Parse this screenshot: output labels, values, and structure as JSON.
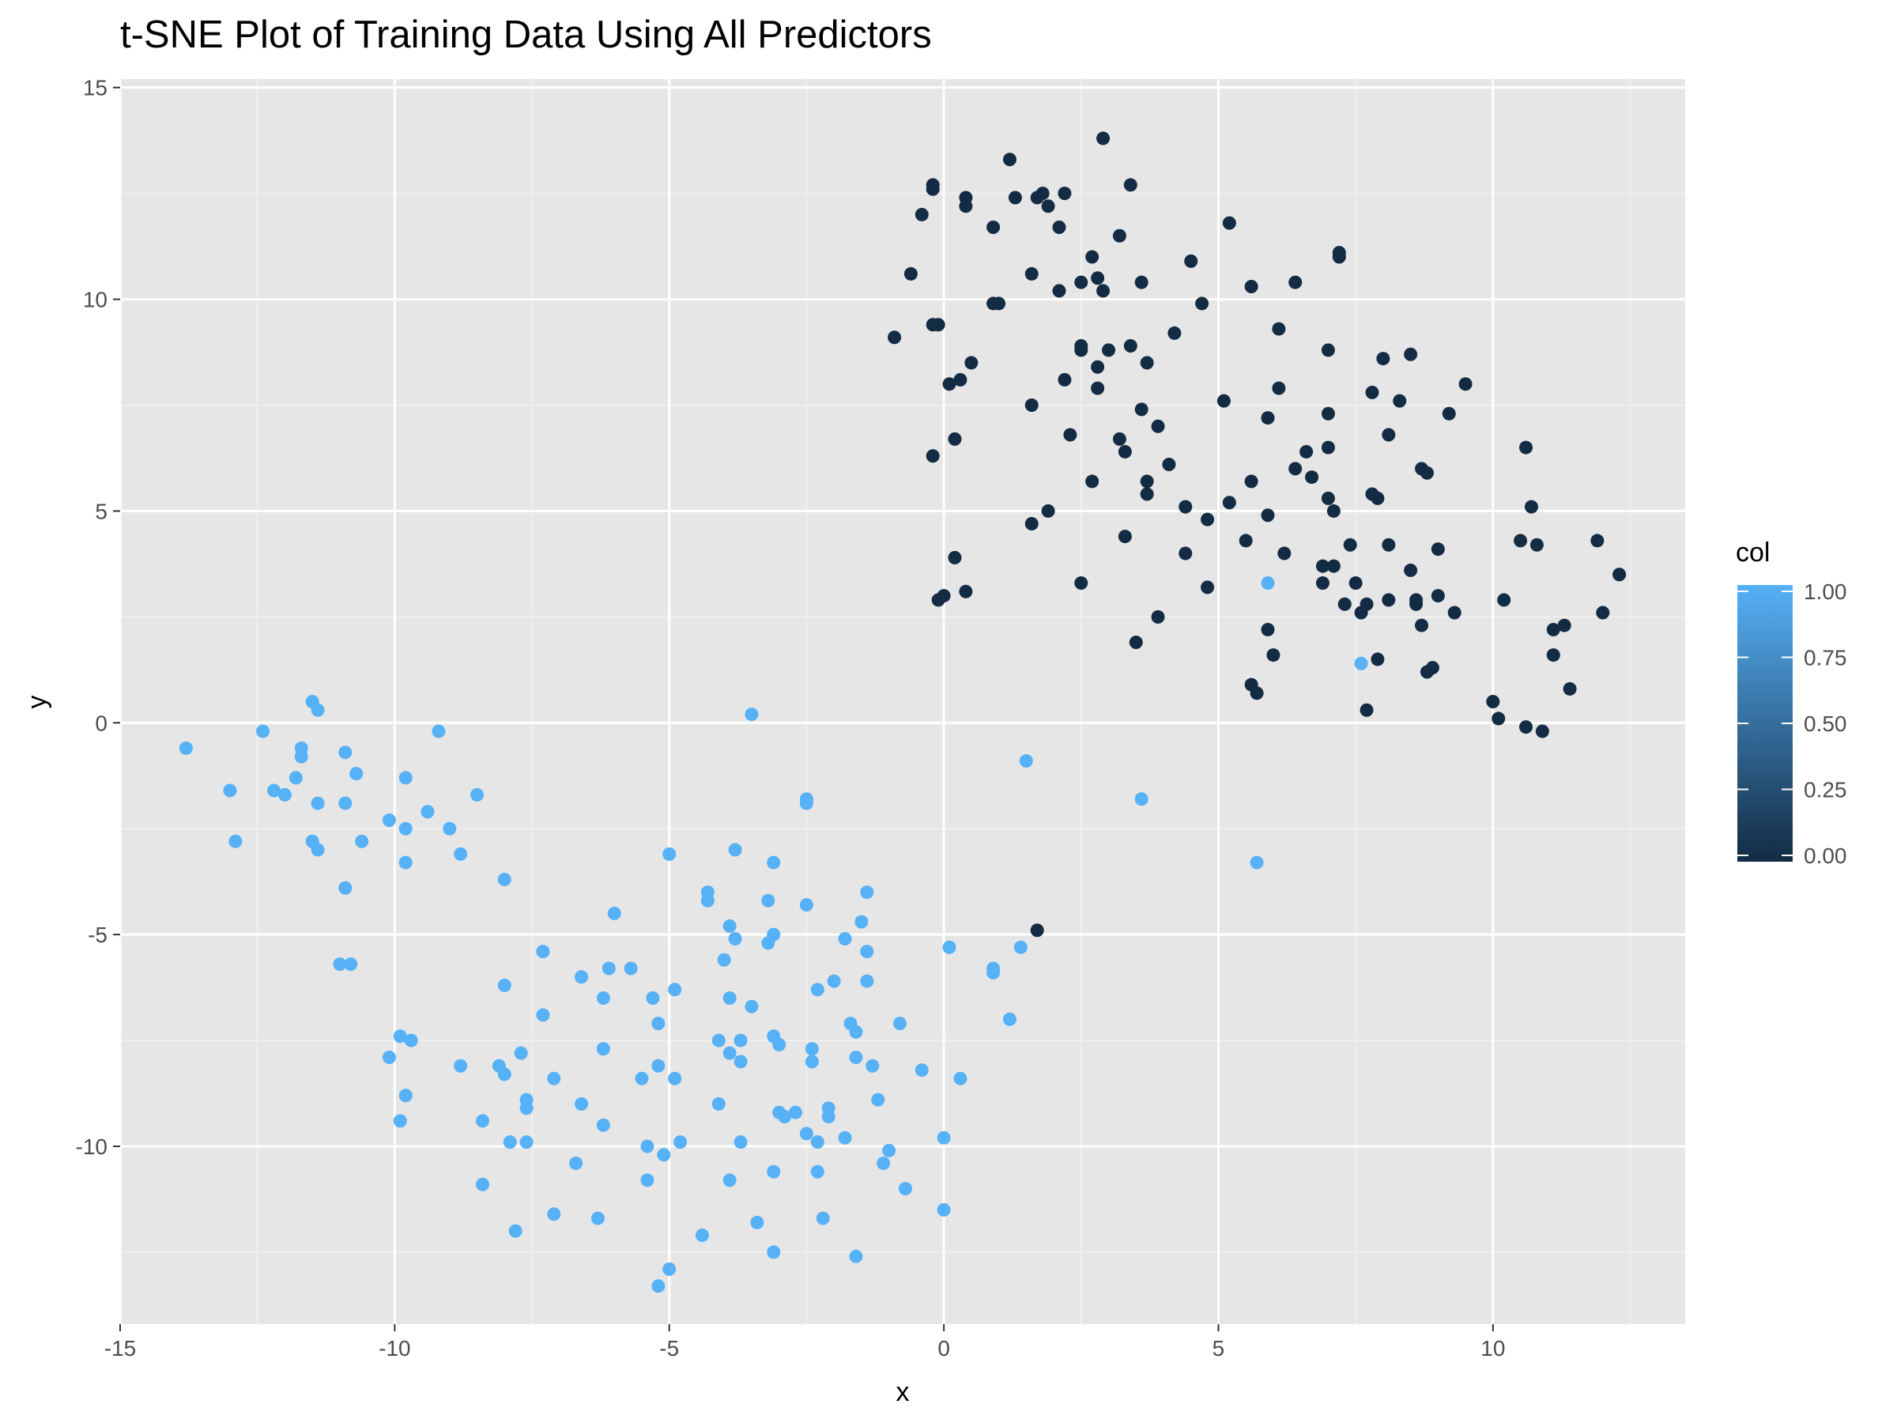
{
  "chart_data": {
    "type": "scatter",
    "title": "t-SNE Plot of Training Data Using All Predictors",
    "xlabel": "x",
    "ylabel": "y",
    "xlim": [
      -15,
      13.5
    ],
    "ylim": [
      -14.2,
      15.2
    ],
    "x_ticks": [
      -15,
      -10,
      -5,
      0,
      5,
      10
    ],
    "x_tick_labels": [
      "-15",
      "-10",
      "-5",
      "0",
      "5",
      "10"
    ],
    "y_ticks": [
      -10,
      -5,
      0,
      5,
      10,
      15
    ],
    "y_tick_labels": [
      "-10",
      "-5",
      "0",
      "5",
      "10",
      "15"
    ],
    "grid": true,
    "panel_background": "#e6e6e6",
    "grid_color": "#ffffff",
    "color_scale": {
      "low": "#132b43",
      "high": "#56b1f7",
      "min": 0,
      "max": 1
    },
    "legend": {
      "title": "col",
      "placement": "right",
      "ticks": [
        1.0,
        0.75,
        0.5,
        0.25,
        0.0
      ],
      "tick_labels": [
        "1.00",
        "0.75",
        "0.50",
        "0.25",
        "0.00"
      ]
    },
    "series": [
      {
        "col": 0,
        "points": [
          [
            2.9,
            13.8
          ],
          [
            1.2,
            13.3
          ],
          [
            3.4,
            12.7
          ],
          [
            -0.2,
            12.7
          ],
          [
            -0.2,
            12.6
          ],
          [
            0.4,
            12.4
          ],
          [
            1.3,
            12.4
          ],
          [
            1.8,
            12.5
          ],
          [
            1.7,
            12.4
          ],
          [
            2.2,
            12.5
          ],
          [
            0.4,
            12.2
          ],
          [
            1.9,
            12.2
          ],
          [
            -0.4,
            12.0
          ],
          [
            5.2,
            11.8
          ],
          [
            0.9,
            11.7
          ],
          [
            2.1,
            11.7
          ],
          [
            3.2,
            11.5
          ],
          [
            7.2,
            11.1
          ],
          [
            7.2,
            11.0
          ],
          [
            2.7,
            11.0
          ],
          [
            4.5,
            10.9
          ],
          [
            1.6,
            10.6
          ],
          [
            -0.6,
            10.6
          ],
          [
            2.8,
            10.5
          ],
          [
            2.5,
            10.4
          ],
          [
            3.6,
            10.4
          ],
          [
            6.4,
            10.4
          ],
          [
            5.6,
            10.3
          ],
          [
            2.1,
            10.2
          ],
          [
            2.9,
            10.2
          ],
          [
            1.0,
            9.9
          ],
          [
            0.9,
            9.9
          ],
          [
            4.7,
            9.9
          ],
          [
            -0.2,
            9.4
          ],
          [
            -0.1,
            9.4
          ],
          [
            6.1,
            9.3
          ],
          [
            4.2,
            9.2
          ],
          [
            -0.9,
            9.1
          ],
          [
            2.5,
            8.9
          ],
          [
            3.4,
            8.9
          ],
          [
            2.5,
            8.8
          ],
          [
            3.0,
            8.8
          ],
          [
            7.0,
            8.8
          ],
          [
            8.5,
            8.7
          ],
          [
            8.0,
            8.6
          ],
          [
            3.7,
            8.5
          ],
          [
            0.5,
            8.5
          ],
          [
            2.8,
            8.4
          ],
          [
            2.2,
            8.1
          ],
          [
            0.3,
            8.1
          ],
          [
            9.5,
            8.0
          ],
          [
            0.1,
            8.0
          ],
          [
            2.8,
            7.9
          ],
          [
            6.1,
            7.9
          ],
          [
            7.8,
            7.8
          ],
          [
            5.1,
            7.6
          ],
          [
            8.3,
            7.6
          ],
          [
            1.6,
            7.5
          ],
          [
            3.6,
            7.4
          ],
          [
            7.0,
            7.3
          ],
          [
            9.2,
            7.3
          ],
          [
            5.9,
            7.2
          ],
          [
            3.9,
            7.0
          ],
          [
            8.1,
            6.8
          ],
          [
            2.3,
            6.8
          ],
          [
            0.2,
            6.7
          ],
          [
            3.2,
            6.7
          ],
          [
            10.6,
            6.5
          ],
          [
            7.0,
            6.5
          ],
          [
            3.3,
            6.4
          ],
          [
            6.6,
            6.4
          ],
          [
            -0.2,
            6.3
          ],
          [
            4.1,
            6.1
          ],
          [
            6.4,
            6.0
          ],
          [
            8.7,
            6.0
          ],
          [
            8.8,
            5.9
          ],
          [
            6.7,
            5.8
          ],
          [
            5.6,
            5.7
          ],
          [
            3.7,
            5.7
          ],
          [
            2.7,
            5.7
          ],
          [
            3.7,
            5.4
          ],
          [
            7.8,
            5.4
          ],
          [
            7.9,
            5.3
          ],
          [
            7.0,
            5.3
          ],
          [
            5.2,
            5.2
          ],
          [
            10.7,
            5.1
          ],
          [
            4.4,
            5.1
          ],
          [
            7.1,
            5.0
          ],
          [
            1.9,
            5.0
          ],
          [
            5.9,
            4.9
          ],
          [
            4.8,
            4.8
          ],
          [
            1.6,
            4.7
          ],
          [
            3.3,
            4.4
          ],
          [
            5.5,
            4.3
          ],
          [
            10.5,
            4.3
          ],
          [
            11.9,
            4.3
          ],
          [
            8.1,
            4.2
          ],
          [
            10.8,
            4.2
          ],
          [
            7.4,
            4.2
          ],
          [
            9.0,
            4.1
          ],
          [
            4.4,
            4.0
          ],
          [
            6.2,
            4.0
          ],
          [
            0.2,
            3.9
          ],
          [
            6.9,
            3.7
          ],
          [
            7.1,
            3.7
          ],
          [
            8.5,
            3.6
          ],
          [
            12.3,
            3.5
          ],
          [
            12.3,
            3.5
          ],
          [
            7.5,
            3.3
          ],
          [
            6.9,
            3.3
          ],
          [
            2.5,
            3.3
          ],
          [
            4.8,
            3.2
          ],
          [
            0.4,
            3.1
          ],
          [
            0.0,
            3.0
          ],
          [
            9.0,
            3.0
          ],
          [
            -0.1,
            2.9
          ],
          [
            10.2,
            2.9
          ],
          [
            8.1,
            2.9
          ],
          [
            8.6,
            2.9
          ],
          [
            8.6,
            2.8
          ],
          [
            7.3,
            2.8
          ],
          [
            7.7,
            2.8
          ],
          [
            7.6,
            2.6
          ],
          [
            9.3,
            2.6
          ],
          [
            12.0,
            2.6
          ],
          [
            3.9,
            2.5
          ],
          [
            11.3,
            2.3
          ],
          [
            11.1,
            2.2
          ],
          [
            8.7,
            2.3
          ],
          [
            5.9,
            2.2
          ],
          [
            3.5,
            1.9
          ],
          [
            11.1,
            1.6
          ],
          [
            6.0,
            1.6
          ],
          [
            7.9,
            1.5
          ],
          [
            8.9,
            1.3
          ],
          [
            8.8,
            1.2
          ],
          [
            5.6,
            0.9
          ],
          [
            11.4,
            0.8
          ],
          [
            5.7,
            0.7
          ],
          [
            10.0,
            0.5
          ],
          [
            7.7,
            0.3
          ],
          [
            10.1,
            0.1
          ],
          [
            10.6,
            -0.1
          ],
          [
            10.9,
            -0.2
          ],
          [
            1.7,
            -4.9
          ]
        ]
      },
      {
        "col": 1,
        "points": [
          [
            5.9,
            3.3
          ],
          [
            7.6,
            1.4
          ],
          [
            -3.5,
            0.2
          ],
          [
            -11.5,
            0.5
          ],
          [
            -11.4,
            0.3
          ],
          [
            -12.4,
            -0.2
          ],
          [
            -9.2,
            -0.2
          ],
          [
            -13.8,
            -0.6
          ],
          [
            -11.7,
            -0.6
          ],
          [
            -10.9,
            -0.7
          ],
          [
            -11.7,
            -0.8
          ],
          [
            1.5,
            -0.9
          ],
          [
            -10.7,
            -1.2
          ],
          [
            -11.8,
            -1.3
          ],
          [
            -9.8,
            -1.3
          ],
          [
            -12.2,
            -1.6
          ],
          [
            -13.0,
            -1.6
          ],
          [
            -12.0,
            -1.7
          ],
          [
            -8.5,
            -1.7
          ],
          [
            -2.5,
            -1.8
          ],
          [
            3.6,
            -1.8
          ],
          [
            -10.9,
            -1.9
          ],
          [
            -11.4,
            -1.9
          ],
          [
            -2.5,
            -1.9
          ],
          [
            -9.4,
            -2.1
          ],
          [
            -10.1,
            -2.3
          ],
          [
            -9.8,
            -2.5
          ],
          [
            -9.0,
            -2.5
          ],
          [
            -12.9,
            -2.8
          ],
          [
            -11.5,
            -2.8
          ],
          [
            -10.6,
            -2.8
          ],
          [
            -11.4,
            -3.0
          ],
          [
            -3.8,
            -3.0
          ],
          [
            -5.0,
            -3.1
          ],
          [
            -8.8,
            -3.1
          ],
          [
            -3.1,
            -3.3
          ],
          [
            -9.8,
            -3.3
          ],
          [
            5.7,
            -3.3
          ],
          [
            -8.0,
            -3.7
          ],
          [
            -10.9,
            -3.9
          ],
          [
            -1.4,
            -4.0
          ],
          [
            -4.3,
            -4.0
          ],
          [
            -4.3,
            -4.2
          ],
          [
            -3.2,
            -4.2
          ],
          [
            -2.5,
            -4.3
          ],
          [
            -6.0,
            -4.5
          ],
          [
            -1.5,
            -4.7
          ],
          [
            -3.9,
            -4.8
          ],
          [
            -3.1,
            -5.0
          ],
          [
            -3.8,
            -5.1
          ],
          [
            -1.8,
            -5.1
          ],
          [
            -3.2,
            -5.2
          ],
          [
            0.1,
            -5.3
          ],
          [
            1.4,
            -5.3
          ],
          [
            -1.4,
            -5.4
          ],
          [
            -7.3,
            -5.4
          ],
          [
            -4.0,
            -5.6
          ],
          [
            -11.0,
            -5.7
          ],
          [
            -10.8,
            -5.7
          ],
          [
            -5.7,
            -5.8
          ],
          [
            -6.1,
            -5.8
          ],
          [
            0.9,
            -5.8
          ],
          [
            0.9,
            -5.9
          ],
          [
            -6.6,
            -6.0
          ],
          [
            -2.0,
            -6.1
          ],
          [
            -1.4,
            -6.1
          ],
          [
            -8.0,
            -6.2
          ],
          [
            -4.9,
            -6.3
          ],
          [
            -2.3,
            -6.3
          ],
          [
            -3.9,
            -6.5
          ],
          [
            -5.3,
            -6.5
          ],
          [
            -6.2,
            -6.5
          ],
          [
            -3.5,
            -6.7
          ],
          [
            1.2,
            -7.0
          ],
          [
            -7.3,
            -6.9
          ],
          [
            -1.7,
            -7.1
          ],
          [
            -0.8,
            -7.1
          ],
          [
            -5.2,
            -7.1
          ],
          [
            -1.6,
            -7.3
          ],
          [
            -9.9,
            -7.4
          ],
          [
            -3.1,
            -7.4
          ],
          [
            -9.7,
            -7.5
          ],
          [
            -4.1,
            -7.5
          ],
          [
            -3.7,
            -7.5
          ],
          [
            -3.0,
            -7.6
          ],
          [
            -6.2,
            -7.7
          ],
          [
            -2.4,
            -7.7
          ],
          [
            -3.9,
            -7.8
          ],
          [
            -7.7,
            -7.8
          ],
          [
            -10.1,
            -7.9
          ],
          [
            -1.6,
            -7.9
          ],
          [
            -3.7,
            -8.0
          ],
          [
            -2.4,
            -8.0
          ],
          [
            -8.1,
            -8.1
          ],
          [
            -1.3,
            -8.1
          ],
          [
            -5.2,
            -8.1
          ],
          [
            -8.8,
            -8.1
          ],
          [
            -0.4,
            -8.2
          ],
          [
            -8.0,
            -8.3
          ],
          [
            -5.5,
            -8.4
          ],
          [
            -7.1,
            -8.4
          ],
          [
            0.3,
            -8.4
          ],
          [
            -4.9,
            -8.4
          ],
          [
            -9.8,
            -8.8
          ],
          [
            -7.6,
            -8.9
          ],
          [
            -1.2,
            -8.9
          ],
          [
            -7.6,
            -9.1
          ],
          [
            -6.6,
            -9.0
          ],
          [
            -4.1,
            -9.0
          ],
          [
            -2.1,
            -9.1
          ],
          [
            -2.7,
            -9.2
          ],
          [
            -3.0,
            -9.2
          ],
          [
            -2.9,
            -9.3
          ],
          [
            -2.1,
            -9.3
          ],
          [
            -9.9,
            -9.4
          ],
          [
            -8.4,
            -9.4
          ],
          [
            -6.2,
            -9.5
          ],
          [
            -2.5,
            -9.7
          ],
          [
            -1.8,
            -9.8
          ],
          [
            0.0,
            -9.8
          ],
          [
            -7.9,
            -9.9
          ],
          [
            -7.6,
            -9.9
          ],
          [
            -4.8,
            -9.9
          ],
          [
            -3.7,
            -9.9
          ],
          [
            -2.3,
            -9.9
          ],
          [
            -5.4,
            -10.0
          ],
          [
            -1.0,
            -10.1
          ],
          [
            -5.1,
            -10.2
          ],
          [
            -1.1,
            -10.4
          ],
          [
            -6.7,
            -10.4
          ],
          [
            -3.1,
            -10.6
          ],
          [
            -2.3,
            -10.6
          ],
          [
            -5.4,
            -10.8
          ],
          [
            -3.9,
            -10.8
          ],
          [
            -8.4,
            -10.9
          ],
          [
            -0.7,
            -11.0
          ],
          [
            0.0,
            -11.5
          ],
          [
            -7.1,
            -11.6
          ],
          [
            -6.3,
            -11.7
          ],
          [
            -2.2,
            -11.7
          ],
          [
            -3.4,
            -11.8
          ],
          [
            -7.8,
            -12.0
          ],
          [
            -4.4,
            -12.1
          ],
          [
            -3.1,
            -12.5
          ],
          [
            -1.6,
            -12.6
          ],
          [
            -5.0,
            -12.9
          ],
          [
            -5.2,
            -13.3
          ]
        ]
      }
    ]
  }
}
